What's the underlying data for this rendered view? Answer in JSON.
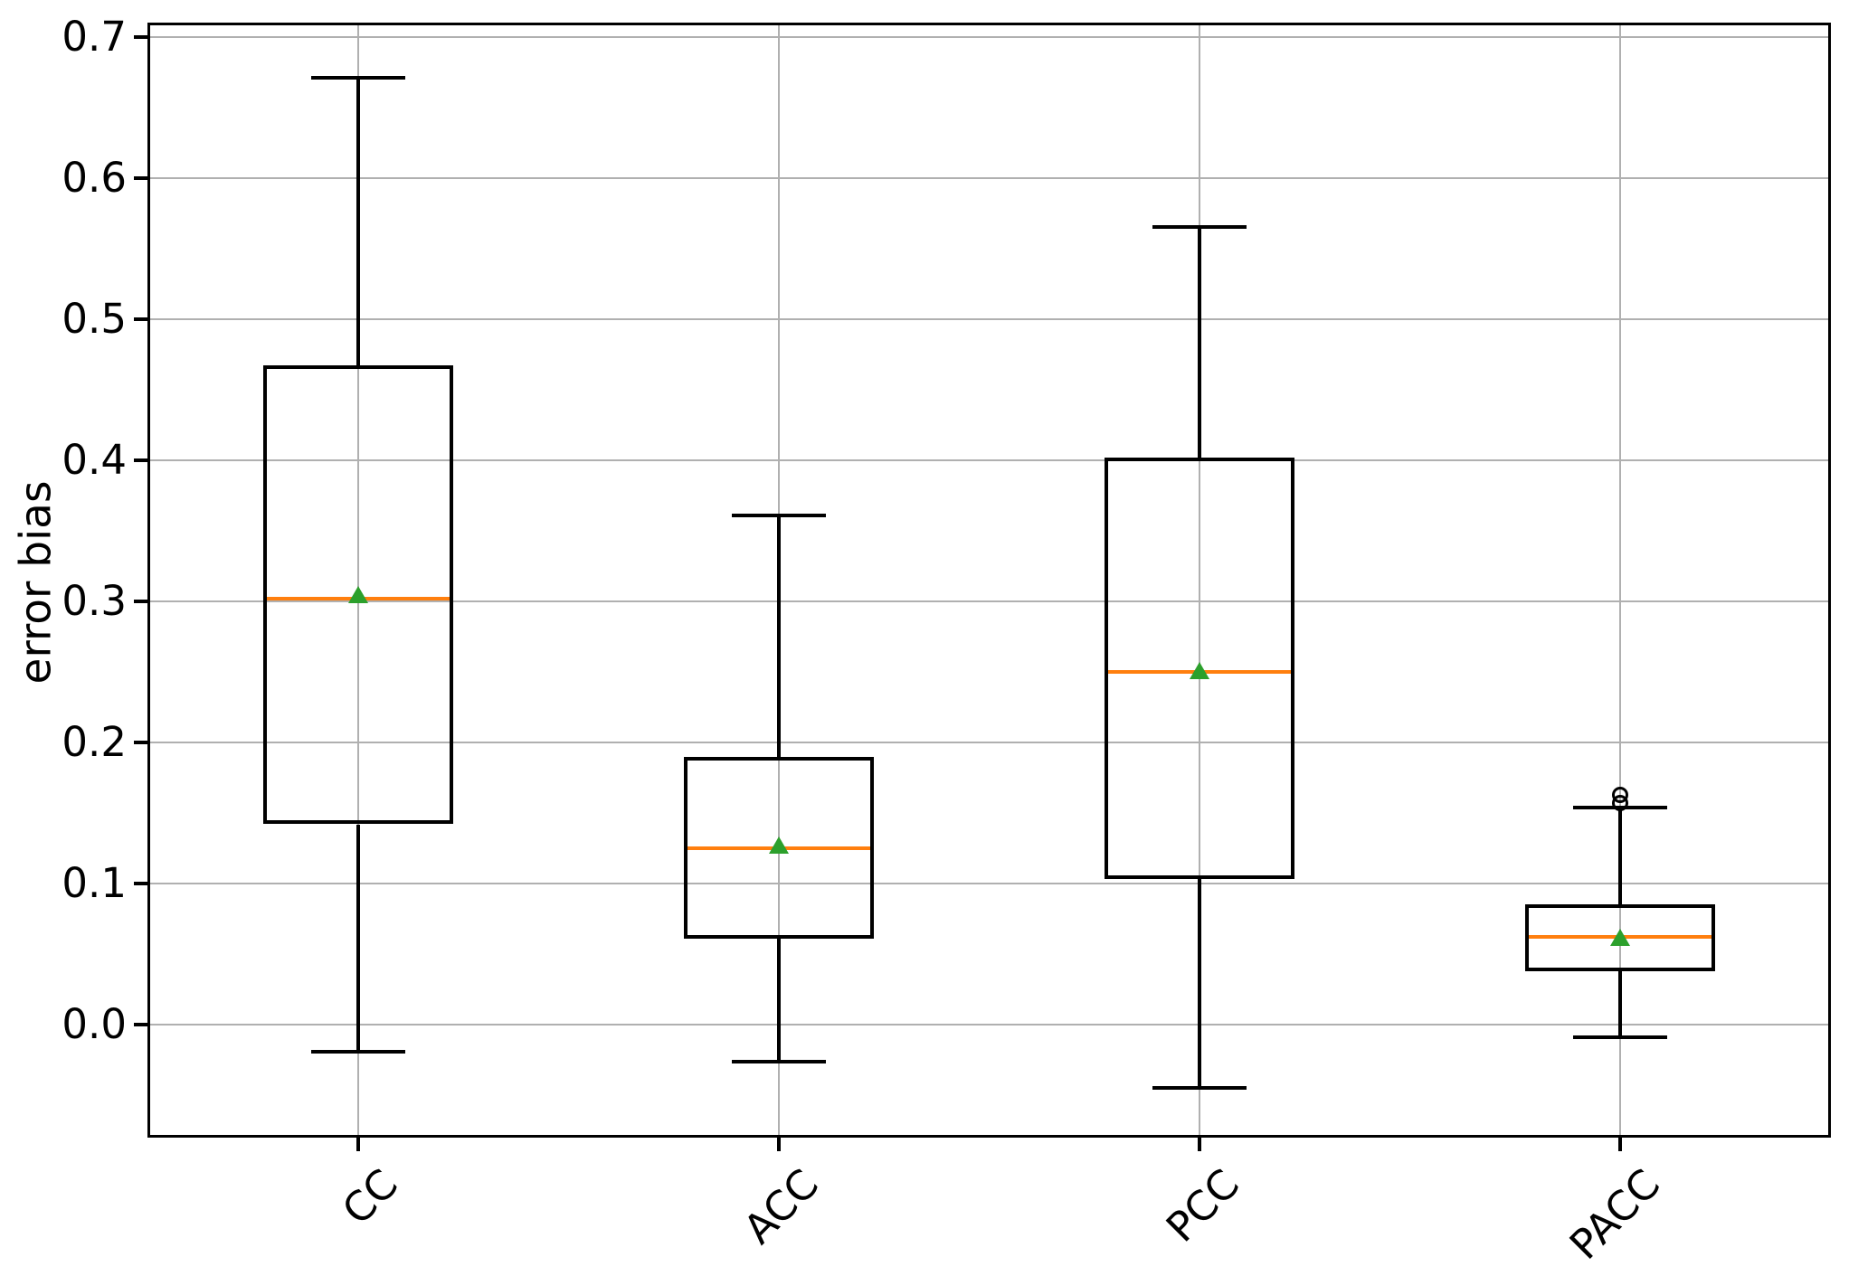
{
  "chart_data": {
    "type": "boxplot",
    "title": "",
    "xlabel": "",
    "ylabel": "error bias",
    "categories": [
      "CC",
      "ACC",
      "PCC",
      "PACC"
    ],
    "ylim": [
      -0.08,
      0.71
    ],
    "yticks": [
      0.7,
      0.6,
      0.5,
      0.4,
      0.3,
      0.2,
      0.1,
      0.0
    ],
    "ytick_labels": [
      "0.7",
      "0.6",
      "0.5",
      "0.4",
      "0.3",
      "0.2",
      "0.1",
      "0.0"
    ],
    "grid": true,
    "legend": "none",
    "series": [
      {
        "name": "CC",
        "whislo": -0.019,
        "q1": 0.142,
        "med": 0.302,
        "mean": 0.305,
        "q3": 0.467,
        "whishi": 0.671,
        "outliers": []
      },
      {
        "name": "ACC",
        "whislo": -0.026,
        "q1": 0.061,
        "med": 0.125,
        "mean": 0.127,
        "q3": 0.19,
        "whishi": 0.361,
        "outliers": []
      },
      {
        "name": "PCC",
        "whislo": -0.045,
        "q1": 0.103,
        "med": 0.25,
        "mean": 0.251,
        "q3": 0.402,
        "whishi": 0.565,
        "outliers": []
      },
      {
        "name": "PACC",
        "whislo": -0.009,
        "q1": 0.038,
        "med": 0.062,
        "mean": 0.062,
        "q3": 0.085,
        "whishi": 0.154,
        "outliers": [
          0.157,
          0.163
        ]
      }
    ],
    "colors": {
      "box": "#000000",
      "median": "#ff7f0e",
      "mean": "#2ca02c",
      "grid": "#b0b0b0",
      "spine": "#000000"
    }
  }
}
